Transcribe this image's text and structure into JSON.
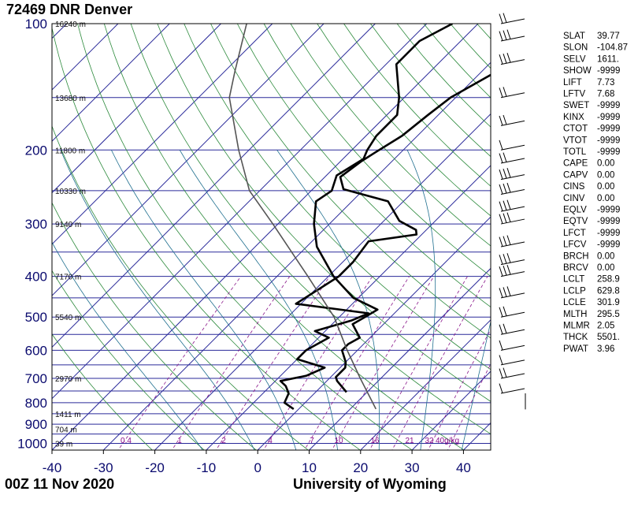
{
  "header": {
    "title": "72469 DNR Denver",
    "timestamp": "00Z 11 Nov 2020",
    "credit": "University of Wyoming"
  },
  "chart_data": {
    "type": "line",
    "title": "72469 DNR Denver",
    "xlabel": "",
    "ylabel": "",
    "xlim": [
      -40,
      45
    ],
    "ylim": [
      1050,
      100
    ],
    "y_scale": "log",
    "x_ticks": [
      "-40",
      "-30",
      "-20",
      "-10",
      "0",
      "10",
      "20",
      "30",
      "40"
    ],
    "pressure_ticks": [
      "100",
      "200",
      "300",
      "400",
      "500",
      "600",
      "700",
      "800",
      "900",
      "1000"
    ],
    "height_labels": [
      {
        "p": 1000,
        "label": "39 m"
      },
      {
        "p": 925,
        "label": "704 m"
      },
      {
        "p": 850,
        "label": "1411 m"
      },
      {
        "p": 700,
        "label": "2970 m"
      },
      {
        "p": 500,
        "label": "5540 m"
      },
      {
        "p": 400,
        "label": "7170 m"
      },
      {
        "p": 300,
        "label": "9140 m"
      },
      {
        "p": 250,
        "label": "10330 m"
      },
      {
        "p": 200,
        "label": "11800 m"
      },
      {
        "p": 150,
        "label": "13680 m"
      },
      {
        "p": 100,
        "label": "16240 m"
      }
    ],
    "mixing_ratio_labels": [
      "0.4",
      "1",
      "2",
      "4",
      "7",
      "10",
      "16",
      "21",
      "32",
      "40g/kg"
    ],
    "series": [
      {
        "name": "",
        "color": "#000000",
        "points": [
          {
            "p": 828,
            "t": -1
          },
          {
            "p": 800,
            "t": -4
          },
          {
            "p": 760,
            "t": -5
          },
          {
            "p": 730,
            "t": -7
          },
          {
            "p": 710,
            "t": -9
          },
          {
            "p": 690,
            "t": -5
          },
          {
            "p": 660,
            "t": -3
          },
          {
            "p": 630,
            "t": -10
          },
          {
            "p": 600,
            "t": -10
          },
          {
            "p": 560,
            "t": -8
          },
          {
            "p": 540,
            "t": -12
          },
          {
            "p": 510,
            "t": -7
          },
          {
            "p": 490,
            "t": -5
          },
          {
            "p": 465,
            "t": -21
          },
          {
            "p": 400,
            "t": -18
          },
          {
            "p": 370,
            "t": -18
          },
          {
            "p": 330,
            "t": -19
          },
          {
            "p": 318,
            "t": -11
          },
          {
            "p": 310,
            "t": -12
          },
          {
            "p": 295,
            "t": -17
          },
          {
            "p": 265,
            "t": -23
          },
          {
            "p": 248,
            "t": -34
          },
          {
            "p": 232,
            "t": -37
          },
          {
            "p": 213,
            "t": -36
          },
          {
            "p": 203,
            "t": -35
          },
          {
            "p": 185,
            "t": -33
          },
          {
            "p": 165,
            "t": -32
          },
          {
            "p": 150,
            "t": -31
          },
          {
            "p": 125,
            "t": -26
          },
          {
            "p": 100,
            "t": -18
          }
        ]
      },
      {
        "name": "",
        "color": "#000000",
        "points": [
          {
            "p": 755,
            "t": 6
          },
          {
            "p": 710,
            "t": 2
          },
          {
            "p": 695,
            "t": 1
          },
          {
            "p": 660,
            "t": 1
          },
          {
            "p": 640,
            "t": 0
          },
          {
            "p": 600,
            "t": -3
          },
          {
            "p": 580,
            "t": -3
          },
          {
            "p": 560,
            "t": -2
          },
          {
            "p": 520,
            "t": -6
          },
          {
            "p": 500,
            "t": -5
          },
          {
            "p": 480,
            "t": -4
          },
          {
            "p": 450,
            "t": -11
          },
          {
            "p": 400,
            "t": -19
          },
          {
            "p": 340,
            "t": -28
          },
          {
            "p": 300,
            "t": -33
          },
          {
            "p": 265,
            "t": -37
          },
          {
            "p": 250,
            "t": -36
          },
          {
            "p": 230,
            "t": -38
          },
          {
            "p": 210,
            "t": -36
          },
          {
            "p": 200,
            "t": -37
          },
          {
            "p": 185,
            "t": -38
          },
          {
            "p": 165,
            "t": -38
          },
          {
            "p": 150,
            "t": -41
          },
          {
            "p": 125,
            "t": -48
          },
          {
            "p": 110,
            "t": -48
          },
          {
            "p": 100,
            "t": -45
          }
        ]
      },
      {
        "name": "",
        "color": "#555555",
        "points": [
          {
            "p": 828,
            "t": 15
          },
          {
            "p": 700,
            "t": 6
          },
          {
            "p": 600,
            "t": -2
          },
          {
            "p": 500,
            "t": -11
          },
          {
            "p": 400,
            "t": -24
          },
          {
            "p": 300,
            "t": -41
          },
          {
            "p": 250,
            "t": -52
          },
          {
            "p": 200,
            "t": -62
          },
          {
            "p": 150,
            "t": -74
          },
          {
            "p": 130,
            "t": -78
          },
          {
            "p": 100,
            "t": -85
          }
        ]
      }
    ],
    "wind_barbs": [
      {
        "p": 100,
        "barbs": 2
      },
      {
        "p": 110,
        "barbs": 3
      },
      {
        "p": 125,
        "barbs": 3
      },
      {
        "p": 150,
        "barbs": 2
      },
      {
        "p": 175,
        "barbs": 2
      },
      {
        "p": 200,
        "barbs": 1
      },
      {
        "p": 215,
        "barbs": 2
      },
      {
        "p": 235,
        "barbs": 3
      },
      {
        "p": 255,
        "barbs": 3
      },
      {
        "p": 280,
        "barbs": 3
      },
      {
        "p": 300,
        "barbs": 3
      },
      {
        "p": 340,
        "barbs": 3
      },
      {
        "p": 375,
        "barbs": 3
      },
      {
        "p": 400,
        "barbs": 3
      },
      {
        "p": 450,
        "barbs": 3
      },
      {
        "p": 500,
        "barbs": 2
      },
      {
        "p": 550,
        "barbs": 2
      },
      {
        "p": 600,
        "barbs": 1
      },
      {
        "p": 650,
        "barbs": 1
      },
      {
        "p": 700,
        "barbs": 2
      },
      {
        "p": 760,
        "barbs": 1
      }
    ],
    "indices": [
      {
        "key": "SLAT",
        "value": "39.77"
      },
      {
        "key": "SLON",
        "value": "-104.87"
      },
      {
        "key": "SELV",
        "value": "1611."
      },
      {
        "key": "SHOW",
        "value": "-9999"
      },
      {
        "key": "LIFT",
        "value": "7.73"
      },
      {
        "key": "LFTV",
        "value": "7.68"
      },
      {
        "key": "SWET",
        "value": "-9999"
      },
      {
        "key": "KINX",
        "value": "-9999"
      },
      {
        "key": "CTOT",
        "value": "-9999"
      },
      {
        "key": "VTOT",
        "value": "-9999"
      },
      {
        "key": "TOTL",
        "value": "-9999"
      },
      {
        "key": "CAPE",
        "value": "0.00"
      },
      {
        "key": "CAPV",
        "value": "0.00"
      },
      {
        "key": "CINS",
        "value": "0.00"
      },
      {
        "key": "CINV",
        "value": "0.00"
      },
      {
        "key": "EQLV",
        "value": "-9999"
      },
      {
        "key": "EQTV",
        "value": "-9999"
      },
      {
        "key": "LFCT",
        "value": "-9999"
      },
      {
        "key": "LFCV",
        "value": "-9999"
      },
      {
        "key": "BRCH",
        "value": "0.00"
      },
      {
        "key": "BRCV",
        "value": "0.00"
      },
      {
        "key": "LCLT",
        "value": "258.9"
      },
      {
        "key": "LCLP",
        "value": "629.8"
      },
      {
        "key": "LCLE",
        "value": "301.9"
      },
      {
        "key": "MLTH",
        "value": "295.5"
      },
      {
        "key": "MLMR",
        "value": "2.05"
      },
      {
        "key": "THCK",
        "value": "5501."
      },
      {
        "key": "PWAT",
        "value": "3.96"
      }
    ]
  }
}
